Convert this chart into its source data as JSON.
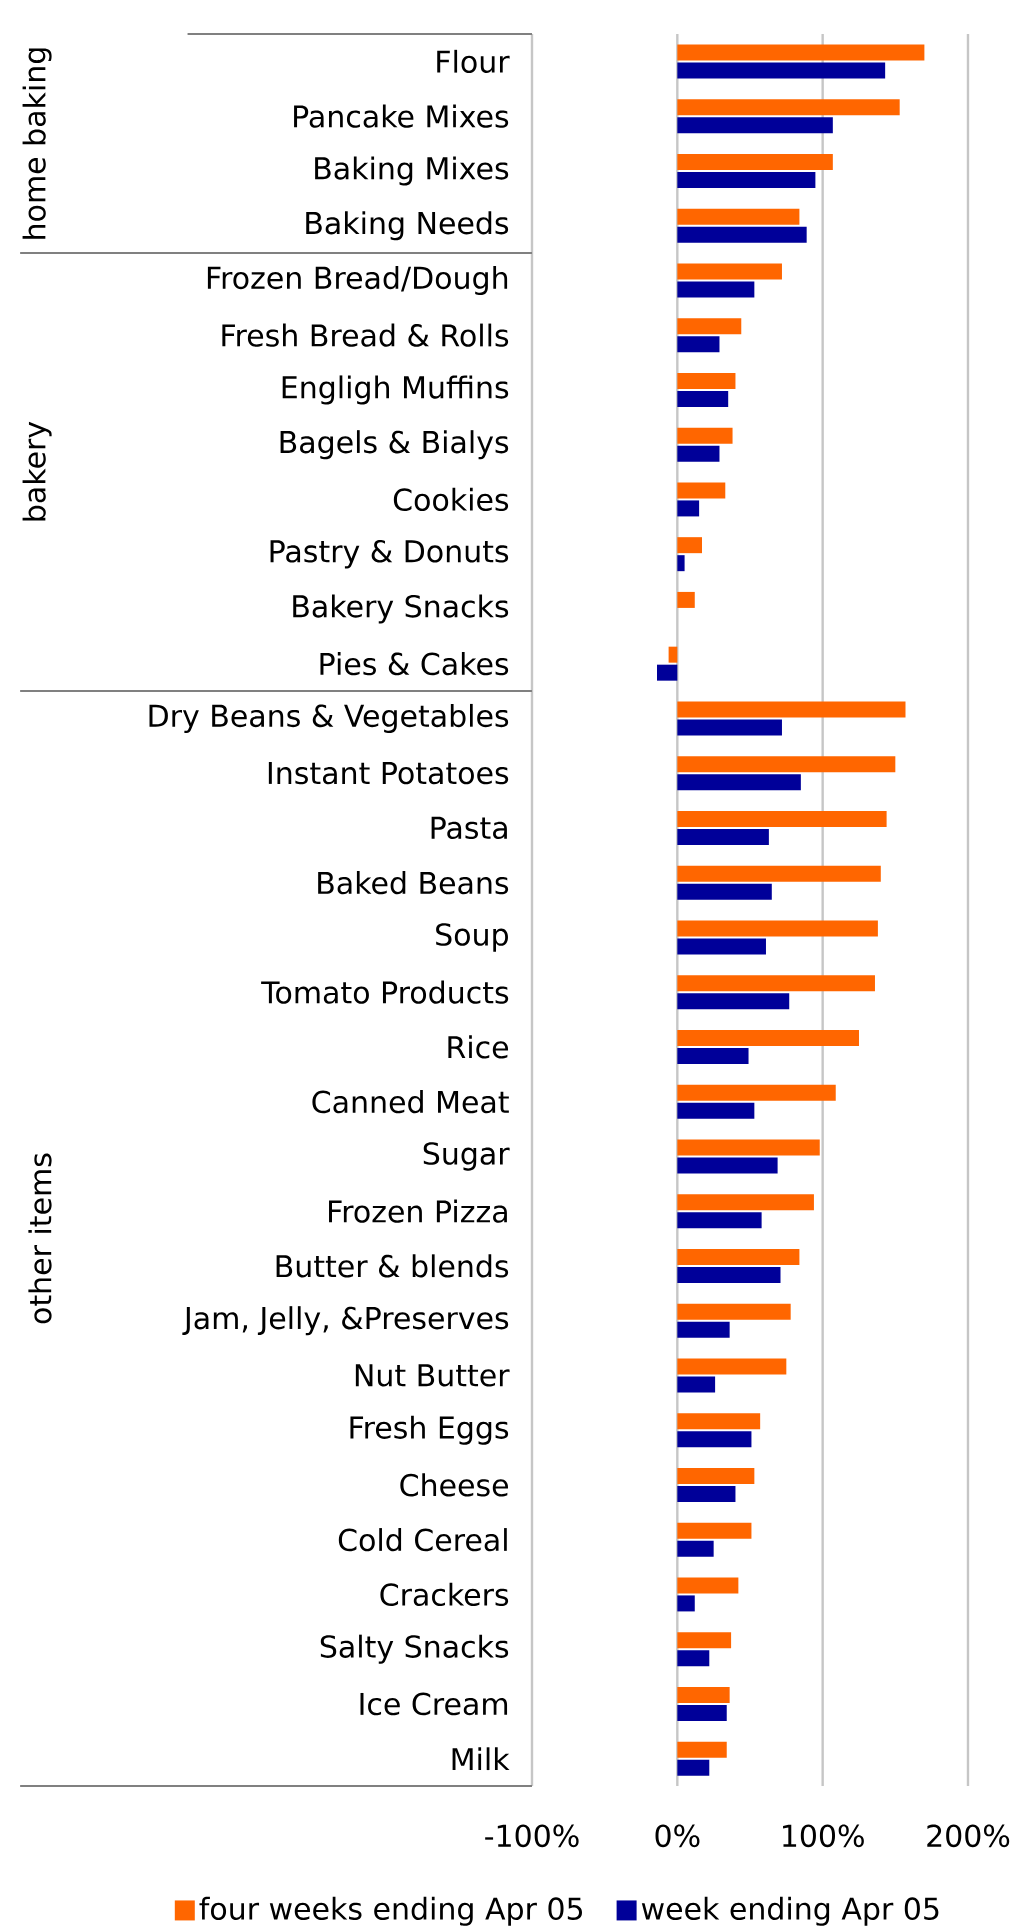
{
  "chart_data": {
    "type": "bar",
    "orientation": "horizontal",
    "categories": [
      "Flour",
      "Pancake Mixes",
      "Baking Mixes",
      "Baking Needs",
      "Frozen Bread/Dough",
      "Fresh Bread & Rolls",
      "Engligh Muffins",
      "Bagels & Bialys",
      "Cookies",
      "Pastry & Donuts",
      "Bakery Snacks",
      "Pies & Cakes",
      "Dry Beans & Vegetables",
      "Instant Potatoes",
      "Pasta",
      "Baked Beans",
      "Soup",
      "Tomato Products",
      "Rice",
      "Canned Meat",
      "Sugar",
      "Frozen Pizza",
      "Butter & blends",
      "Jam, Jelly, &Preserves",
      "Nut Butter",
      "Fresh Eggs",
      "Cheese",
      "Cold Cereal",
      "Crackers",
      "Salty Snacks",
      "Ice Cream",
      "Milk"
    ],
    "series": [
      {
        "name": "four weeks ending Apr 05",
        "color": "#ff6600",
        "values": [
          170,
          153,
          107,
          84,
          72,
          44,
          40,
          38,
          33,
          17,
          12,
          -6,
          157,
          150,
          144,
          140,
          138,
          136,
          125,
          109,
          98,
          94,
          84,
          78,
          75,
          57,
          53,
          51,
          42,
          37,
          36,
          34
        ]
      },
      {
        "name": "week ending Apr 05",
        "color": "#000099",
        "values": [
          143,
          107,
          95,
          89,
          53,
          29,
          35,
          29,
          15,
          5,
          0,
          -14,
          72,
          85,
          63,
          65,
          61,
          77,
          49,
          53,
          69,
          58,
          71,
          36,
          26,
          51,
          40,
          25,
          12,
          22,
          34,
          22
        ]
      }
    ],
    "xlim": [
      -100,
      200
    ],
    "xticks": [
      {
        "value": -100,
        "label": "-100%"
      },
      {
        "value": 0,
        "label": "0%"
      },
      {
        "value": 100,
        "label": "100%"
      },
      {
        "value": 200,
        "label": "200%"
      }
    ],
    "grid": "x",
    "legend": "bottom",
    "annotations": [
      "home baking",
      "bakery",
      "other items"
    ]
  }
}
